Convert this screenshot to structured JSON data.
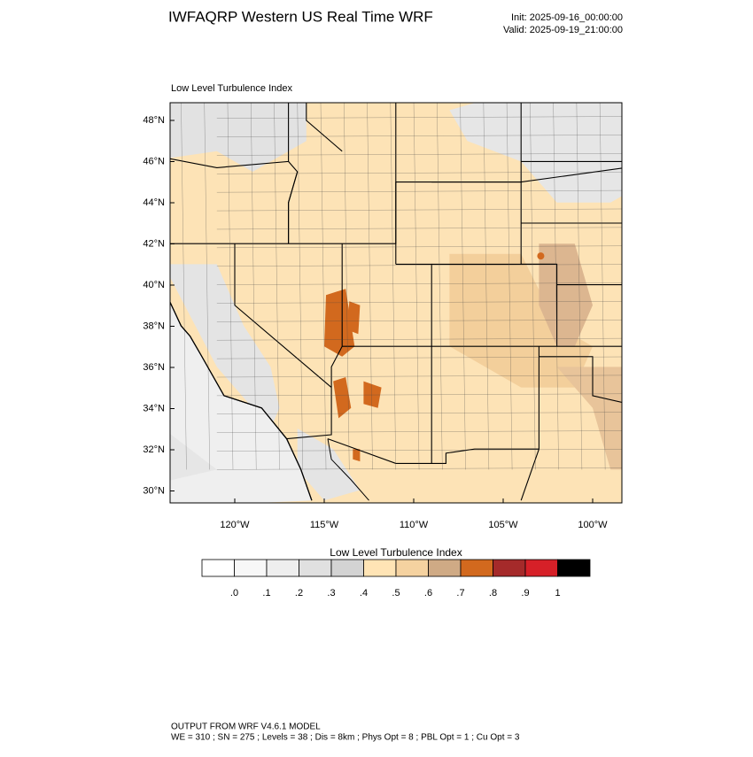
{
  "header": {
    "title": "IWFAQRP Western US Real Time WRF",
    "init": "Init: 2025-09-16_00:00:00",
    "valid": "Valid: 2025-09-19_21:00:00"
  },
  "map": {
    "subtitle": "Low Level Turbulence Index",
    "lat_labels": [
      "48°N",
      "46°N",
      "44°N",
      "42°N",
      "40°N",
      "38°N",
      "36°N",
      "34°N",
      "32°N",
      "30°N"
    ],
    "lon_labels": [
      "120°W",
      "115°W",
      "110°W",
      "105°W",
      "100°W"
    ]
  },
  "colorbar": {
    "title": "Low Level Turbulence Index",
    "colors": [
      "#ffffff",
      "#f7f7f7",
      "#eeeeee",
      "#e0e0e0",
      "#d3d3d3",
      "#ffe4b5",
      "#f5d2a0",
      "#cfaa85",
      "#d2691e",
      "#a52a2a",
      "#d62028",
      "#000000"
    ],
    "labels": [
      ".0",
      ".1",
      ".2",
      ".3",
      ".4",
      ".5",
      ".6",
      ".7",
      ".8",
      ".9",
      "1"
    ]
  },
  "footer": {
    "line1": "OUTPUT FROM WRF V4.6.1 MODEL",
    "line2": "WE = 310 ; SN = 275 ; Levels = 38 ; Dis = 8km ; Phys Opt = 8 ; PBL Opt = 1 ; Cu Opt = 3"
  }
}
